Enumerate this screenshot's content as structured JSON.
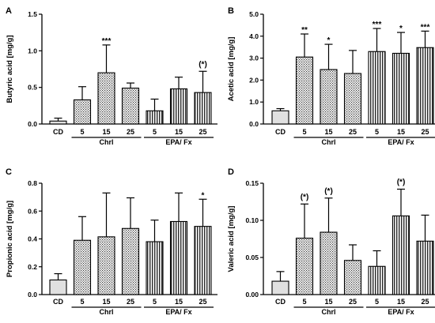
{
  "categories": [
    "CD",
    "5",
    "15",
    "25",
    "5",
    "15",
    "25"
  ],
  "group_labels": [
    "Chrl",
    "EPA/ Fx"
  ],
  "colors": {
    "axis": "#000000",
    "cd_fill": "#dddddd",
    "chrl_fill": "#c8c8c8",
    "epa_fill": "#b0b0b0"
  },
  "chart_data": [
    {
      "type": "bar",
      "panel": "A",
      "ylabel": "Butyric acid [mg/g]",
      "ylim": [
        0,
        1.5
      ],
      "yticks": [
        0.0,
        0.5,
        1.0,
        1.5
      ],
      "ytick_labels": [
        "0.0",
        "0.5",
        "1.0",
        "1.5"
      ],
      "values": [
        0.04,
        0.33,
        0.7,
        0.49,
        0.18,
        0.48,
        0.43
      ],
      "errors": [
        0.04,
        0.18,
        0.38,
        0.07,
        0.16,
        0.16,
        0.29
      ],
      "annotations": [
        "",
        "",
        "***",
        "",
        "",
        "",
        "(*)"
      ]
    },
    {
      "type": "bar",
      "panel": "B",
      "ylabel": "Acetic acid [mg/g]",
      "ylim": [
        0,
        5
      ],
      "yticks": [
        0,
        1,
        2,
        3,
        4,
        5
      ],
      "ytick_labels": [
        "0.0",
        "1.0",
        "2.0",
        "3.0",
        "4.0",
        "5.0"
      ],
      "values": [
        0.6,
        3.05,
        2.48,
        2.3,
        3.3,
        3.22,
        3.48
      ],
      "errors": [
        0.1,
        1.05,
        1.15,
        1.05,
        1.05,
        0.95,
        0.75
      ],
      "annotations": [
        "",
        "**",
        "*",
        "",
        "***",
        "*",
        "***"
      ]
    },
    {
      "type": "bar",
      "panel": "C",
      "ylabel": "Propionic acid [mg/g]",
      "ylim": [
        0,
        0.8
      ],
      "yticks": [
        0.0,
        0.2,
        0.4,
        0.6,
        0.8
      ],
      "ytick_labels": [
        "0.0",
        "0.2",
        "0.4",
        "0.6",
        "0.8"
      ],
      "values": [
        0.105,
        0.39,
        0.415,
        0.475,
        0.38,
        0.525,
        0.49
      ],
      "errors": [
        0.045,
        0.17,
        0.315,
        0.22,
        0.155,
        0.205,
        0.195
      ],
      "annotations": [
        "",
        "",
        "",
        "",
        "",
        "",
        "*"
      ]
    },
    {
      "type": "bar",
      "panel": "D",
      "ylabel": "Valeric acid [mg/g]",
      "ylim": [
        0,
        0.15
      ],
      "yticks": [
        0.0,
        0.05,
        0.1,
        0.15
      ],
      "ytick_labels": [
        "0.00",
        "0.05",
        "0.10",
        "0.15"
      ],
      "values": [
        0.018,
        0.076,
        0.084,
        0.046,
        0.038,
        0.106,
        0.072
      ],
      "errors": [
        0.013,
        0.046,
        0.046,
        0.021,
        0.021,
        0.036,
        0.035
      ],
      "annotations": [
        "",
        "(*)",
        "(*)",
        "",
        "",
        "(*)",
        ""
      ]
    }
  ]
}
